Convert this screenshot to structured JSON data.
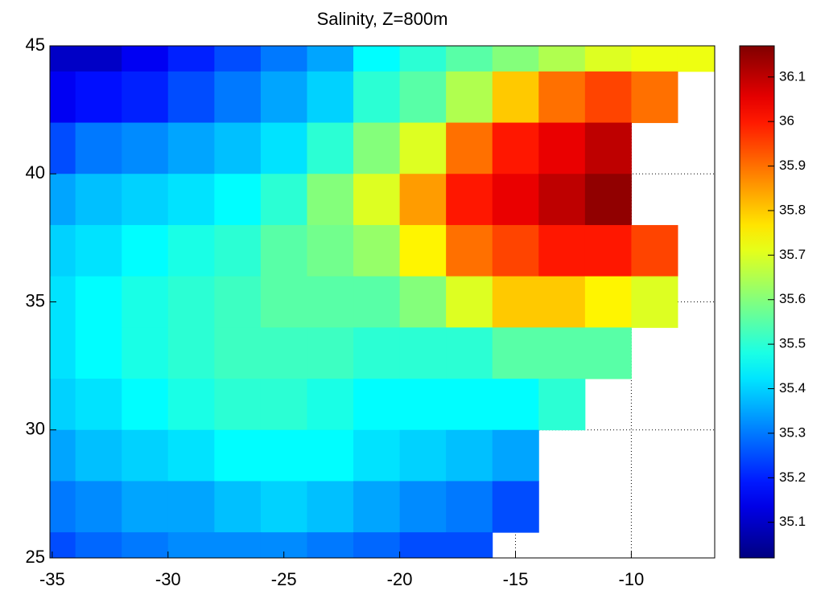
{
  "chart_data": {
    "type": "heatmap",
    "title": "Salinity, Z=800m",
    "x": [
      -35,
      -33,
      -31,
      -29,
      -27,
      -25,
      -23,
      -21,
      -19,
      -17,
      -15,
      -13,
      -11,
      -9,
      -7
    ],
    "y": [
      45,
      43,
      41,
      39,
      37,
      35,
      33,
      31,
      29,
      27,
      25
    ],
    "values": [
      [
        35.1,
        35.1,
        35.15,
        35.2,
        35.25,
        35.3,
        35.35,
        35.45,
        35.5,
        35.55,
        35.6,
        35.65,
        35.7,
        35.72,
        35.72
      ],
      [
        35.15,
        35.18,
        35.2,
        35.25,
        35.3,
        35.35,
        35.4,
        35.5,
        35.55,
        35.65,
        35.8,
        35.9,
        35.95,
        35.9,
        null
      ],
      [
        35.25,
        35.3,
        35.32,
        35.35,
        35.38,
        35.42,
        35.5,
        35.6,
        35.7,
        35.9,
        36.0,
        36.05,
        36.1,
        null,
        null
      ],
      [
        35.35,
        35.38,
        35.4,
        35.42,
        35.45,
        35.5,
        35.6,
        35.7,
        35.85,
        36.0,
        36.05,
        36.1,
        36.15,
        null,
        null
      ],
      [
        35.4,
        35.42,
        35.45,
        35.48,
        35.5,
        35.55,
        35.58,
        35.62,
        35.75,
        35.9,
        35.95,
        36.0,
        36.0,
        35.95,
        null
      ],
      [
        35.42,
        35.45,
        35.48,
        35.5,
        35.52,
        35.55,
        35.55,
        35.55,
        35.6,
        35.7,
        35.8,
        35.8,
        35.75,
        35.7,
        null
      ],
      [
        35.42,
        35.45,
        35.48,
        35.5,
        35.52,
        35.52,
        35.52,
        35.5,
        35.5,
        35.5,
        35.55,
        35.55,
        35.55,
        null,
        null
      ],
      [
        35.4,
        35.42,
        35.45,
        35.48,
        35.5,
        35.5,
        35.48,
        35.45,
        35.45,
        35.45,
        35.45,
        35.5,
        null,
        null,
        null
      ],
      [
        35.35,
        35.38,
        35.4,
        35.42,
        35.45,
        35.45,
        35.45,
        35.42,
        35.4,
        35.38,
        35.35,
        null,
        null,
        null,
        null
      ],
      [
        35.3,
        35.32,
        35.35,
        35.35,
        35.38,
        35.4,
        35.38,
        35.35,
        35.32,
        35.3,
        35.25,
        null,
        null,
        null,
        null
      ],
      [
        35.25,
        35.28,
        35.3,
        35.32,
        35.32,
        35.32,
        35.3,
        35.28,
        35.25,
        35.25,
        null,
        null,
        null,
        null,
        null
      ]
    ],
    "xlim": [
      -35.1,
      -6.4
    ],
    "xticks": [
      -35,
      -30,
      -25,
      -20,
      -15,
      -10
    ],
    "ylim": [
      25,
      45
    ],
    "yticks": [
      25,
      30,
      35,
      40,
      45
    ],
    "clim": [
      35.02,
      36.17
    ],
    "cticks": [
      35.1,
      35.2,
      35.3,
      35.4,
      35.5,
      35.6,
      35.7,
      35.8,
      35.9,
      36,
      36.1
    ],
    "colormap": "jet",
    "grid": true
  }
}
